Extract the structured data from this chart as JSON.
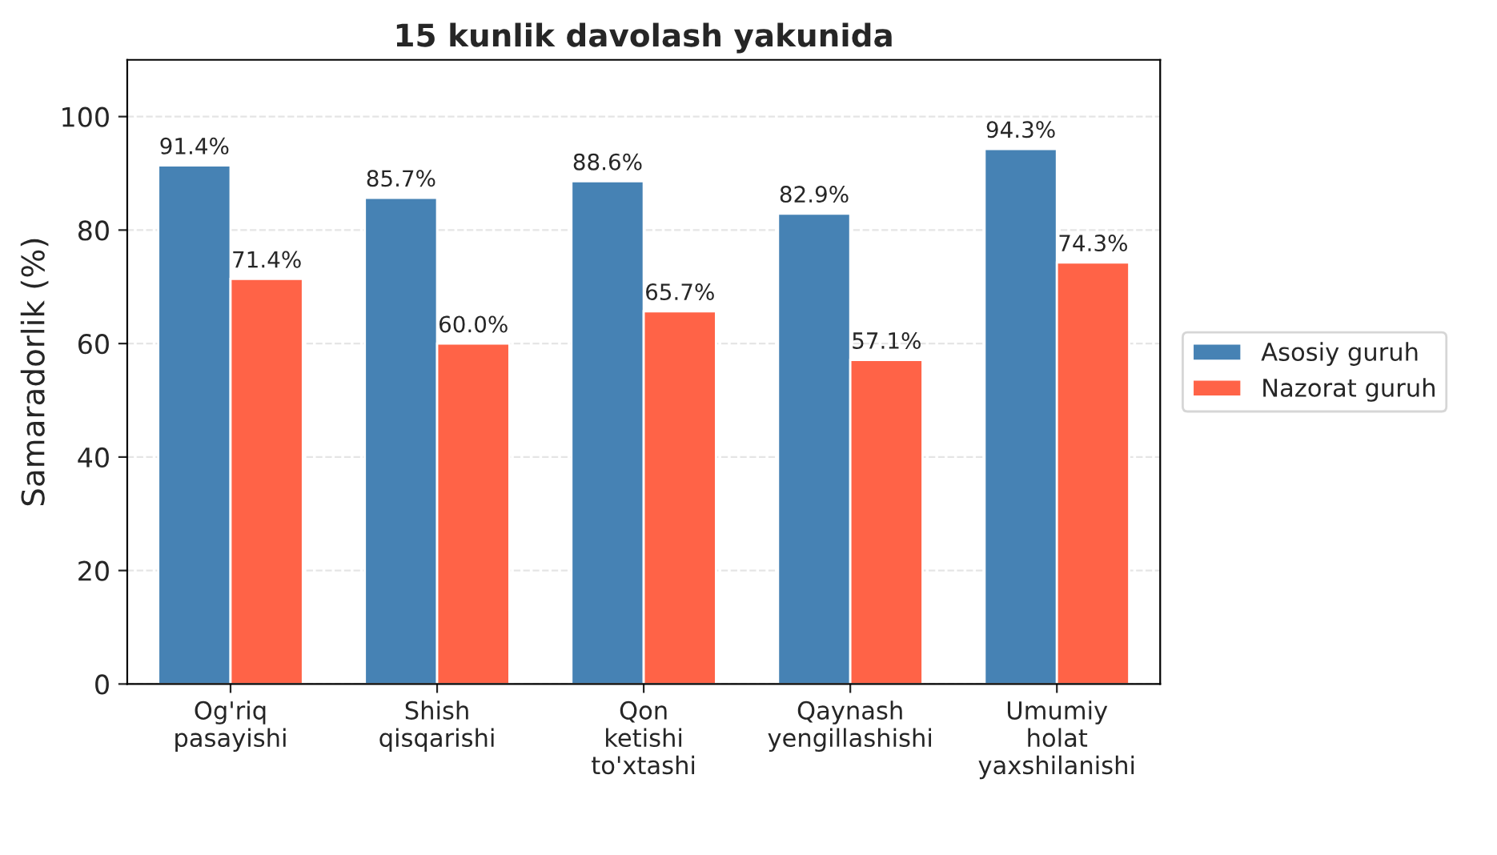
{
  "chart_data": {
    "type": "bar",
    "title": "15 kunlik davolash yakunida",
    "ylabel": "Samaradorlik (%)",
    "categories": [
      "Og'riq\npasayishi",
      "Shish\nqisqarishi",
      "Qon\nketishi\nto'xtashi",
      "Qaynash\nyengillashishi",
      "Umumiy\nholat\nyaxshilanishi"
    ],
    "series": [
      {
        "name": "Asosiy guruh",
        "color": "#4682b4",
        "values": [
          91.4,
          85.7,
          88.6,
          82.9,
          94.3
        ],
        "value_labels": [
          "91.4%",
          "85.7%",
          "88.6%",
          "82.9%",
          "94.3%"
        ]
      },
      {
        "name": "Nazorat guruh",
        "color": "#ff6347",
        "values": [
          71.4,
          60.0,
          65.7,
          57.1,
          74.3
        ],
        "value_labels": [
          "71.4%",
          "60.0%",
          "65.7%",
          "57.1%",
          "74.3%"
        ]
      }
    ],
    "ylim": [
      0,
      110
    ],
    "yticks": [
      0,
      20,
      40,
      60,
      80,
      100
    ],
    "grid": "y",
    "legend": "right"
  }
}
